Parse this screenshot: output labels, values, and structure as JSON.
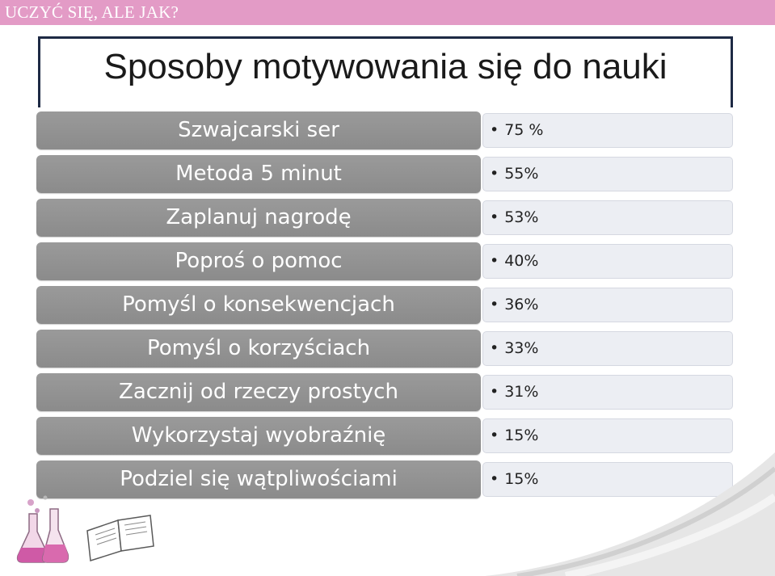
{
  "header": {
    "banner": "UCZYĆ SIĘ, ALE JAK?"
  },
  "slide": {
    "title": "Sposoby motywowania się do nauki",
    "items": [
      {
        "label": "Szwajcarski ser",
        "value": "75 %"
      },
      {
        "label": "Metoda 5 minut",
        "value": "55%"
      },
      {
        "label": "Zaplanuj nagrodę",
        "value": "53%"
      },
      {
        "label": "Poproś o pomoc",
        "value": "40%"
      },
      {
        "label": "Pomyśl o konsekwencjach",
        "value": "36%"
      },
      {
        "label": "Pomyśl o korzyściach",
        "value": "33%"
      },
      {
        "label": "Zacznij od rzeczy prostych",
        "value": "31%"
      },
      {
        "label": "Wykorzystaj wyobraźnię",
        "value": "15%"
      },
      {
        "label": "Podziel się wątpliwościami",
        "value": "15%"
      }
    ]
  },
  "icons": {
    "bullet": "•",
    "decor_left": "flask-icon",
    "decor_right": "open-book-icon"
  },
  "colors": {
    "banner": "#e39bc6",
    "label_bg": "#919191",
    "value_bg": "#eceef3",
    "frame": "#1e2a44"
  }
}
